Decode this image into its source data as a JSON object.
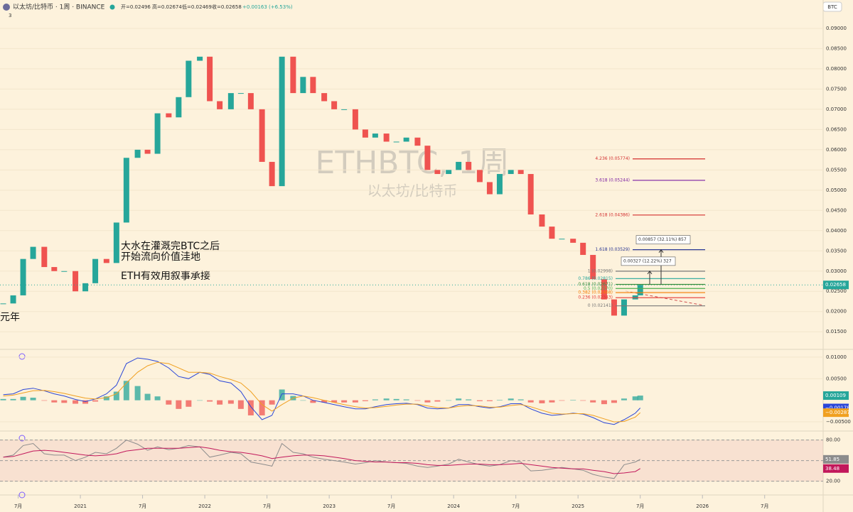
{
  "header": {
    "symbol": "以太坊/比特币 · 1周 · BINANCE",
    "ohlc": [
      "开=0.02496",
      "高=0.02674",
      "低=0.02469",
      "收=0.02658",
      "+0.00163 (+6.53%)"
    ],
    "indicator_count": "3",
    "currency": "BTC"
  },
  "watermark": {
    "title": "ETHBTC, 1周",
    "subtitle": "以太坊/比特币"
  },
  "annotations": [
    "大水在灌溉完BTC之后",
    "开始流向价值洼地",
    "ETH有效用叙事承接",
    "元年"
  ],
  "chart_data": [
    {
      "type": "candlestick",
      "up_color": "#26a69a",
      "down_color": "#ef5350",
      "x": [
        2020.38,
        2020.46,
        2020.54,
        2020.62,
        2020.71,
        2020.79,
        2020.87,
        2020.96,
        2021.04,
        2021.12,
        2021.21,
        2021.29,
        2021.37,
        2021.46,
        2021.54,
        2021.62,
        2021.71,
        2021.79,
        2021.87,
        2021.96,
        2022.04,
        2022.12,
        2022.21,
        2022.29,
        2022.37,
        2022.46,
        2022.54,
        2022.62,
        2022.71,
        2022.79,
        2022.87,
        2022.96,
        2023.04,
        2023.12,
        2023.21,
        2023.29,
        2023.37,
        2023.46,
        2023.54,
        2023.62,
        2023.71,
        2023.79,
        2023.87,
        2023.96,
        2024.04,
        2024.12,
        2024.21,
        2024.29,
        2024.37,
        2024.46,
        2024.54,
        2024.62,
        2024.71,
        2024.79,
        2024.87,
        2024.96,
        2025.04,
        2025.12,
        2025.21,
        2025.29,
        2025.37,
        2025.46,
        2025.5
      ],
      "close": [
        0.022,
        0.024,
        0.033,
        0.036,
        0.031,
        0.03,
        0.03,
        0.025,
        0.027,
        0.033,
        0.032,
        0.042,
        0.058,
        0.06,
        0.059,
        0.069,
        0.068,
        0.073,
        0.082,
        0.083,
        0.072,
        0.07,
        0.074,
        0.074,
        0.07,
        0.057,
        0.051,
        0.083,
        0.074,
        0.078,
        0.074,
        0.072,
        0.07,
        0.07,
        0.065,
        0.063,
        0.064,
        0.062,
        0.062,
        0.063,
        0.061,
        0.055,
        0.054,
        0.055,
        0.057,
        0.055,
        0.052,
        0.049,
        0.054,
        0.055,
        0.054,
        0.044,
        0.041,
        0.038,
        0.038,
        0.037,
        0.034,
        0.028,
        0.023,
        0.019,
        0.023,
        0.024,
        0.02658
      ],
      "last": {
        "value": 0.02658,
        "label": "0.02658"
      },
      "xlim": [
        2020.354,
        2026.97
      ],
      "ylim": [
        0.011,
        0.0935
      ],
      "xticks": [
        {
          "value": 2020.5,
          "label": "7月"
        },
        {
          "value": 2021,
          "label": "2021"
        },
        {
          "value": 2021.5,
          "label": "7月"
        },
        {
          "value": 2022,
          "label": "2022"
        },
        {
          "value": 2022.5,
          "label": "7月"
        },
        {
          "value": 2023,
          "label": "2023"
        },
        {
          "value": 2023.5,
          "label": "7月"
        },
        {
          "value": 2024,
          "label": "2024"
        },
        {
          "value": 2024.5,
          "label": "7月"
        },
        {
          "value": 2025,
          "label": "2025"
        },
        {
          "value": 2025.5,
          "label": "7月"
        },
        {
          "value": 2026,
          "label": "2026"
        },
        {
          "value": 2026.5,
          "label": "7月"
        }
      ],
      "yticks": [
        {
          "value": 0.09,
          "label": "0.09000"
        },
        {
          "value": 0.085,
          "label": "0.08500"
        },
        {
          "value": 0.08,
          "label": "0.08000"
        },
        {
          "value": 0.075,
          "label": "0.07500"
        },
        {
          "value": 0.07,
          "label": "0.07000"
        },
        {
          "value": 0.065,
          "label": "0.06500"
        },
        {
          "value": 0.06,
          "label": "0.06000"
        },
        {
          "value": 0.055,
          "label": "0.05500"
        },
        {
          "value": 0.05,
          "label": "0.05000"
        },
        {
          "value": 0.045,
          "label": "0.04500"
        },
        {
          "value": 0.04,
          "label": "0.04000"
        },
        {
          "value": 0.035,
          "label": "0.03500"
        },
        {
          "value": 0.03,
          "label": "0.03000"
        },
        {
          "value": 0.025,
          "label": "0.02500"
        },
        {
          "value": 0.02,
          "label": "0.02000"
        },
        {
          "value": 0.015,
          "label": "0.01500"
        }
      ],
      "fib_lines": [
        {
          "value": 0.05774,
          "label": "4.236 (0.05774)",
          "color": "#d32f2f"
        },
        {
          "value": 0.05244,
          "label": "3.618 (0.05244)",
          "color": "#7b1fa2"
        },
        {
          "value": 0.04386,
          "label": "2.618 (0.04386)",
          "color": "#d32f2f"
        },
        {
          "value": 0.03529,
          "label": "1.618 (0.03529)",
          "color": "#283593"
        },
        {
          "value": 0.02998,
          "label": "1 (0.02998)",
          "color": "#777777"
        },
        {
          "value": 0.02815,
          "label": "0.786 (0.02815)",
          "color": "#26a69a"
        },
        {
          "value": 0.02671,
          "label": "0.618 (0.02671)",
          "color": "#388e3c"
        },
        {
          "value": 0.0257,
          "label": "0.5 (0.02570)",
          "color": "#4caf50"
        },
        {
          "value": 0.02468,
          "label": "0.382 (0.02468)",
          "color": "#f57c00"
        },
        {
          "value": 0.02343,
          "label": "0.236 (0.02343)",
          "color": "#e53935"
        },
        {
          "value": 0.02141,
          "label": "0 (0.02141)",
          "color": "#777777"
        }
      ],
      "measures": [
        {
          "label": "0.00857 (32.11%) 857",
          "from": 0.02671,
          "to": 0.03528
        },
        {
          "label": "0.00327 (12.22%) 327",
          "from": 0.02671,
          "to": 0.02998
        }
      ]
    },
    {
      "type": "macd",
      "ylim": [
        -0.0068,
        0.0113
      ],
      "yticks": [
        {
          "value": 0.01,
          "label": "0.01000"
        },
        {
          "value": 0.005,
          "label": "0.00500"
        },
        {
          "value": -0.005,
          "label": "−0.00500"
        }
      ],
      "series": [
        {
          "kind": "histogram",
          "color": "#26a69a",
          "negative_color": "#ef5350",
          "last_label": "0.00109",
          "values": [
            0.0003,
            0.0003,
            0.0008,
            0.0006,
            -0.0001,
            -0.0005,
            -0.0006,
            -0.0008,
            -0.0008,
            -0.0003,
            0.0009,
            0.002,
            0.0045,
            0.0033,
            0.0015,
            0.0009,
            -0.001,
            -0.002,
            -0.0015,
            0,
            -0.0003,
            -0.001,
            -0.0008,
            -0.002,
            -0.0035,
            -0.0035,
            -0.001,
            0.0025,
            0.001,
            0,
            -0.0006,
            -0.0005,
            -0.0005,
            -0.0005,
            -0.0005,
            -0.0002,
            0.0002,
            0.0004,
            0.0003,
            0.0002,
            -0.0001,
            -0.0005,
            -0.0003,
            0,
            0.0004,
            0.0002,
            -0.0002,
            -0.0002,
            0.0001,
            0.0004,
            0.0002,
            -0.0005,
            -0.0007,
            -0.0005,
            -0.0001,
            0.0001,
            -0.0001,
            -0.0005,
            -0.0009,
            -0.0006,
            0.0004,
            0.0009,
            0.00109
          ]
        },
        {
          "kind": "line",
          "color": "#2a46d8",
          "last_label": "−0.00178",
          "values": [
            0.0013,
            0.0015,
            0.0025,
            0.0028,
            0.0022,
            0.0015,
            0.001,
            0.0002,
            -0.0003,
            0.0003,
            0.0015,
            0.0035,
            0.0085,
            0.0098,
            0.0095,
            0.009,
            0.0075,
            0.0055,
            0.005,
            0.0065,
            0.006,
            0.0045,
            0.004,
            0.002,
            -0.0015,
            -0.0045,
            -0.0035,
            0.0015,
            0.0015,
            0.001,
            0,
            -0.0005,
            -0.001,
            -0.0015,
            -0.002,
            -0.002,
            -0.0015,
            -0.001,
            -0.0008,
            -0.0007,
            -0.001,
            -0.0018,
            -0.002,
            -0.0018,
            -0.001,
            -0.001,
            -0.0015,
            -0.0018,
            -0.0015,
            -0.0008,
            -0.0008,
            -0.002,
            -0.003,
            -0.0035,
            -0.0033,
            -0.003,
            -0.0032,
            -0.004,
            -0.0052,
            -0.0056,
            -0.0045,
            -0.003,
            -0.00178
          ]
        },
        {
          "kind": "line",
          "color": "#f0a020",
          "last_label": "−0.00287",
          "values": [
            0.001,
            0.0012,
            0.0017,
            0.0022,
            0.0023,
            0.002,
            0.0016,
            0.001,
            0.0005,
            0.0003,
            0.0006,
            0.0015,
            0.004,
            0.0065,
            0.008,
            0.0088,
            0.0085,
            0.0075,
            0.0065,
            0.0065,
            0.0063,
            0.0055,
            0.0048,
            0.004,
            0.002,
            -0.001,
            -0.0025,
            -0.001,
            0.0005,
            0.001,
            0.0006,
            0,
            -0.0005,
            -0.001,
            -0.0015,
            -0.0018,
            -0.0017,
            -0.0014,
            -0.0011,
            -0.0009,
            -0.0009,
            -0.0013,
            -0.0017,
            -0.0018,
            -0.0014,
            -0.0012,
            -0.0013,
            -0.0016,
            -0.0016,
            -0.0012,
            -0.001,
            -0.0015,
            -0.0023,
            -0.003,
            -0.0032,
            -0.0031,
            -0.0031,
            -0.0035,
            -0.0043,
            -0.005,
            -0.0049,
            -0.0039,
            -0.00287
          ]
        }
      ]
    },
    {
      "type": "rsi",
      "ylim": [
        2,
        90
      ],
      "levels": [
        80,
        50,
        20
      ],
      "yticks": [
        {
          "value": 80,
          "label": "80.00"
        },
        {
          "value": 20,
          "label": "20.00"
        }
      ],
      "series": [
        {
          "color": "#8c8c8c",
          "last_label": "51.85",
          "values": [
            55,
            58,
            72,
            75,
            60,
            58,
            58,
            50,
            55,
            62,
            60,
            68,
            80,
            74,
            65,
            70,
            66,
            68,
            72,
            70,
            55,
            58,
            62,
            60,
            48,
            45,
            42,
            75,
            62,
            60,
            55,
            52,
            50,
            48,
            45,
            47,
            50,
            48,
            47,
            46,
            42,
            40,
            42,
            45,
            52,
            48,
            44,
            42,
            44,
            50,
            48,
            35,
            36,
            38,
            40,
            38,
            36,
            30,
            26,
            24,
            44,
            48,
            51.85
          ]
        },
        {
          "color": "#c2185b",
          "last_label": "38.48",
          "values": [
            55,
            56,
            60,
            64,
            65,
            64,
            62,
            60,
            58,
            57,
            58,
            60,
            64,
            66,
            68,
            68,
            68,
            68,
            69,
            70,
            68,
            65,
            63,
            62,
            60,
            57,
            53,
            55,
            57,
            58,
            58,
            57,
            55,
            53,
            50,
            49,
            48,
            48,
            47,
            47,
            46,
            44,
            43,
            43,
            44,
            45,
            45,
            44,
            44,
            45,
            46,
            44,
            42,
            40,
            39,
            38,
            38,
            36,
            34,
            31,
            32,
            34,
            38.48
          ]
        }
      ]
    }
  ]
}
